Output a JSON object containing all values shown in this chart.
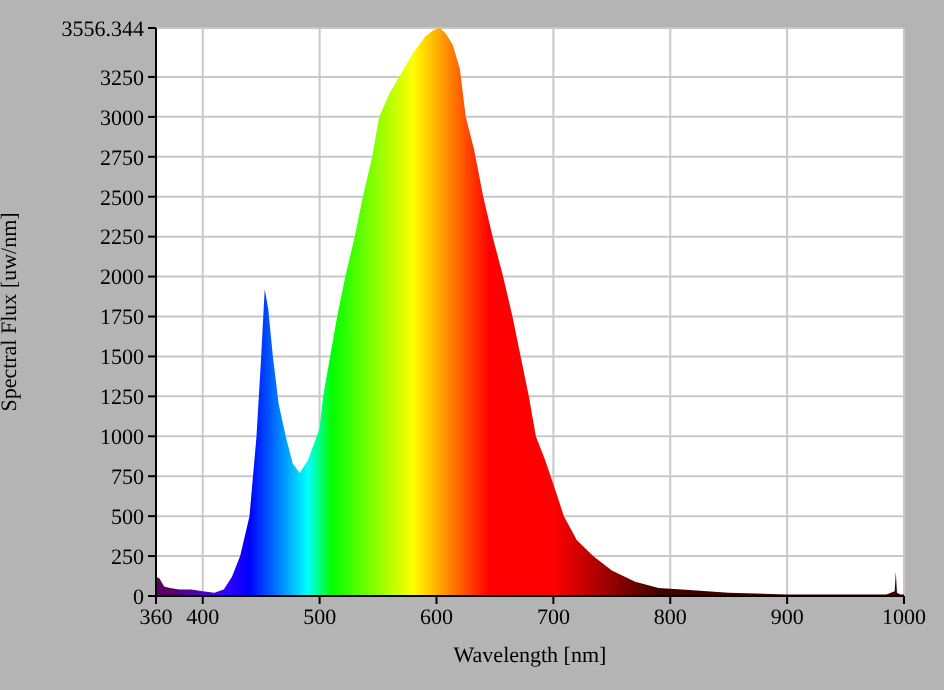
{
  "chart_data": {
    "type": "area",
    "xlabel": "Wavelength [nm]",
    "ylabel": "Spectral Flux [uw/nm]",
    "xlim": [
      360,
      1000
    ],
    "xticks": [
      360,
      400,
      500,
      600,
      700,
      800,
      900,
      1000
    ],
    "ylim": [
      0,
      3556.344
    ],
    "yticks": [
      0,
      250,
      500,
      750,
      1000,
      1250,
      1500,
      1750,
      2000,
      2250,
      2500,
      2750,
      3000,
      3250,
      3556.344
    ],
    "grid": true,
    "x": [
      360,
      363,
      367,
      372,
      380,
      390,
      400,
      410,
      418,
      425,
      432,
      440,
      446,
      450,
      453,
      456,
      460,
      465,
      471,
      477,
      483,
      490,
      500,
      503,
      509,
      515,
      522,
      530,
      537,
      545,
      551,
      560,
      568,
      580,
      590,
      597,
      603,
      608,
      614,
      620,
      625,
      632,
      640,
      648,
      657,
      665,
      672,
      679,
      685,
      693,
      700,
      709,
      720,
      734,
      750,
      770,
      790,
      810,
      850,
      900,
      950,
      985,
      992,
      993,
      994,
      997,
      1000
    ],
    "series": [
      {
        "values": [
          120,
          110,
          60,
          50,
          40,
          40,
          30,
          20,
          40,
          120,
          250,
          500,
          1000,
          1500,
          1920,
          1800,
          1500,
          1200,
          1000,
          830,
          770,
          850,
          1050,
          1250,
          1500,
          1750,
          2000,
          2250,
          2500,
          2750,
          3000,
          3150,
          3250,
          3400,
          3500,
          3540,
          3556,
          3520,
          3450,
          3300,
          3000,
          2800,
          2500,
          2250,
          2000,
          1750,
          1500,
          1250,
          1000,
          850,
          700,
          500,
          350,
          250,
          160,
          90,
          50,
          40,
          20,
          10,
          10,
          10,
          30,
          150,
          20,
          10,
          10
        ]
      }
    ]
  }
}
